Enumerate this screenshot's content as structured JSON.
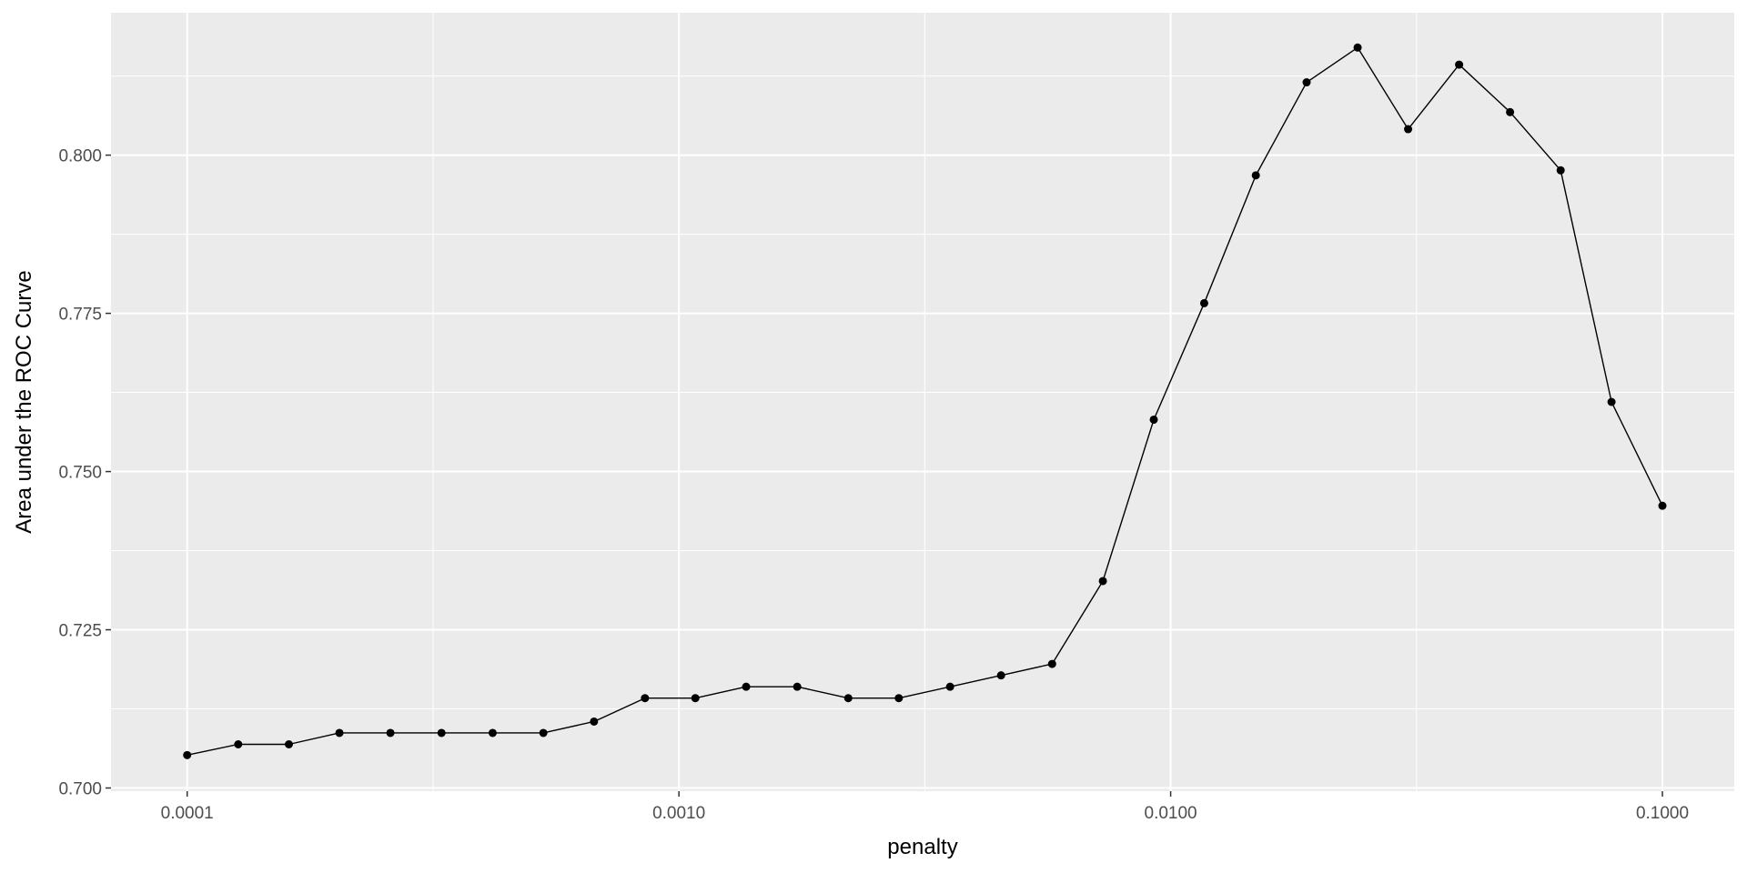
{
  "chart_data": {
    "type": "line",
    "title": "",
    "xlabel": "penalty",
    "ylabel": "Area under the ROC Curve",
    "x_scale": "log10",
    "xlim": [
      7e-05,
      0.14
    ],
    "ylim": [
      0.6995,
      0.8225
    ],
    "x_ticks": [
      {
        "value": 0.0001,
        "label": "0.0001"
      },
      {
        "value": 0.001,
        "label": "0.0010"
      },
      {
        "value": 0.01,
        "label": "0.0100"
      },
      {
        "value": 0.1,
        "label": "0.1000"
      }
    ],
    "y_ticks": [
      {
        "value": 0.7,
        "label": "0.700"
      },
      {
        "value": 0.725,
        "label": "0.725"
      },
      {
        "value": 0.75,
        "label": "0.750"
      },
      {
        "value": 0.775,
        "label": "0.775"
      },
      {
        "value": 0.8,
        "label": "0.800"
      }
    ],
    "grid": true,
    "legend": "none",
    "colors": {
      "panel": "#ebebeb",
      "grid": "#ffffff",
      "series": "#000000"
    },
    "series": [
      {
        "x": [
          0.0001,
          0.000127,
          0.000161,
          0.000204,
          0.000259,
          0.000329,
          0.000418,
          0.00053,
          0.000672,
          0.000853,
          0.00108,
          0.00137,
          0.00174,
          0.00221,
          0.0028,
          0.00356,
          0.00452,
          0.00574,
          0.00728,
          0.00924,
          0.0117,
          0.0149,
          0.0189,
          0.024,
          0.0304,
          0.0386,
          0.049,
          0.0621,
          0.0788,
          0.1
        ],
        "y": [
          0.7052,
          0.7069,
          0.7069,
          0.7087,
          0.7087,
          0.7087,
          0.7087,
          0.7087,
          0.7105,
          0.7142,
          0.7142,
          0.716,
          0.716,
          0.7142,
          0.7142,
          0.716,
          0.7178,
          0.7196,
          0.7327,
          0.7582,
          0.7766,
          0.7968,
          0.8115,
          0.817,
          0.8041,
          0.8143,
          0.8068,
          0.7976,
          0.761,
          0.7446
        ]
      }
    ]
  }
}
